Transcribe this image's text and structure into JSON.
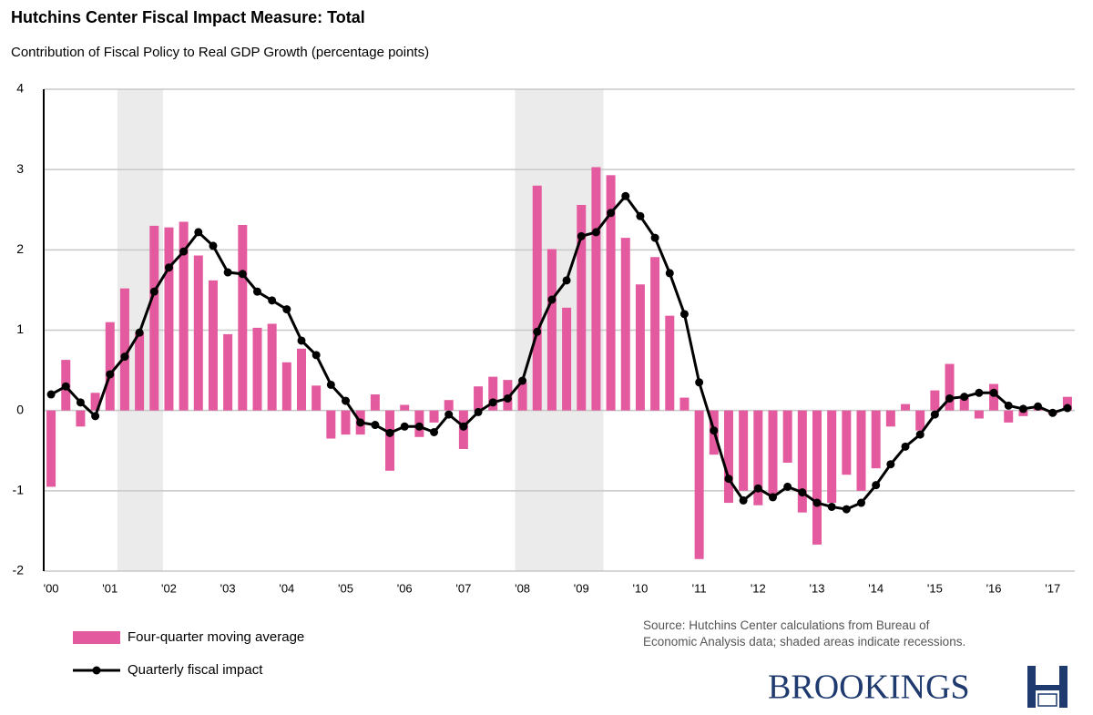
{
  "chart_data": {
    "type": "bar_line",
    "title": "Hutchins Center Fiscal Impact Measure: Total",
    "subtitle": "Contribution of Fiscal Policy to Real GDP Growth (percentage points)",
    "categories": [
      "'00",
      null,
      null,
      null,
      "'01",
      null,
      null,
      null,
      "'02",
      null,
      null,
      null,
      "'03",
      null,
      null,
      null,
      "'04",
      null,
      null,
      null,
      "'05",
      null,
      null,
      null,
      "'06",
      null,
      null,
      null,
      "'07",
      null,
      null,
      null,
      "'08",
      null,
      null,
      null,
      "'09",
      null,
      null,
      null,
      "'10",
      null,
      null,
      null,
      "'11",
      null,
      null,
      null,
      "'12",
      null,
      null,
      null,
      "'13",
      null,
      null,
      null,
      "'14",
      null,
      null,
      null,
      "'15",
      null,
      null,
      null,
      "'16",
      null,
      null,
      null,
      "'17",
      null
    ],
    "series": [
      {
        "name": "Four-quarter moving average",
        "type": "bar",
        "color": "#e45a9f",
        "values": [
          -0.95,
          0.63,
          -0.2,
          0.22,
          1.1,
          1.52,
          0.97,
          2.3,
          2.28,
          2.35,
          1.93,
          1.62,
          0.95,
          2.31,
          1.03,
          1.08,
          0.6,
          0.77,
          0.31,
          -0.35,
          -0.3,
          -0.3,
          0.2,
          -0.75,
          0.07,
          -0.33,
          -0.15,
          0.13,
          -0.48,
          0.3,
          0.42,
          0.38,
          0.35,
          2.8,
          2.01,
          1.28,
          2.56,
          3.03,
          2.93,
          2.15,
          1.57,
          1.91,
          1.18,
          0.16,
          -1.85,
          -0.55,
          -1.15,
          -1.0,
          -1.18,
          -1.05,
          -0.65,
          -1.27,
          -1.67,
          -1.15,
          -0.8,
          -1.0,
          -0.72,
          -0.2,
          0.08,
          -0.25,
          0.25,
          0.58,
          0.17,
          -0.1,
          0.33,
          -0.15,
          -0.07,
          0.05,
          -0.05,
          0.17
        ]
      },
      {
        "name": "Quarterly fiscal impact",
        "type": "line",
        "color": "#000000",
        "values": [
          0.2,
          0.3,
          0.1,
          -0.07,
          0.45,
          0.67,
          0.97,
          1.48,
          1.78,
          1.98,
          2.22,
          2.05,
          1.72,
          1.7,
          1.48,
          1.37,
          1.26,
          0.87,
          0.69,
          0.32,
          0.12,
          -0.15,
          -0.18,
          -0.28,
          -0.2,
          -0.2,
          -0.27,
          -0.05,
          -0.2,
          -0.02,
          0.1,
          0.15,
          0.37,
          0.98,
          1.38,
          1.62,
          2.17,
          2.22,
          2.46,
          2.67,
          2.42,
          2.15,
          1.71,
          1.2,
          0.35,
          -0.25,
          -0.85,
          -1.12,
          -0.97,
          -1.08,
          -0.95,
          -1.02,
          -1.15,
          -1.2,
          -1.23,
          -1.15,
          -0.93,
          -0.67,
          -0.45,
          -0.3,
          -0.05,
          0.15,
          0.17,
          0.22,
          0.22,
          0.06,
          0.02,
          0.05,
          -0.03,
          0.03
        ]
      }
    ],
    "recessions": [
      [
        4.5,
        7.6
      ],
      [
        31.5,
        37.5
      ]
    ],
    "ylim": [
      -2,
      4
    ],
    "yticks": [
      -2,
      -1,
      0,
      1,
      2,
      3,
      4
    ],
    "grid": true,
    "source": "Source: Hutchins Center calculations from Bureau of Economic Analysis data; shaded areas indicate recessions.",
    "logo": "BROOKINGS"
  }
}
